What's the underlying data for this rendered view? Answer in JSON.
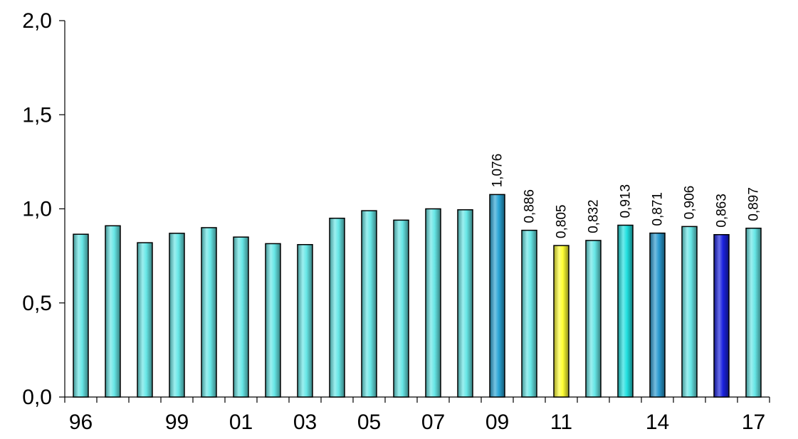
{
  "chart_data": {
    "type": "bar",
    "categories": [
      "96",
      "",
      "",
      "99",
      "",
      "01",
      "",
      "03",
      "",
      "05",
      "",
      "07",
      "",
      "09",
      "",
      "11",
      "",
      "",
      "14",
      "",
      "",
      "17"
    ],
    "values": [
      0.865,
      0.91,
      0.82,
      0.87,
      0.9,
      0.85,
      0.815,
      0.81,
      0.95,
      0.99,
      0.94,
      1.0,
      0.995,
      1.076,
      0.886,
      0.805,
      0.832,
      0.913,
      0.871,
      0.906,
      0.863,
      0.897
    ],
    "data_labels": [
      "",
      "",
      "",
      "",
      "",
      "",
      "",
      "",
      "",
      "",
      "",
      "",
      "",
      "1,076",
      "0,886",
      "0,805",
      "0,832",
      "0,913",
      "0,871",
      "0,906",
      "0,863",
      "0,897"
    ],
    "bar_colors": [
      "#66e6e6",
      "#66e6e6",
      "#66e6e6",
      "#66e6e6",
      "#66e6e6",
      "#66e6e6",
      "#66e6e6",
      "#66e6e6",
      "#66e6e6",
      "#66e6e6",
      "#66e6e6",
      "#66e6e6",
      "#66e6e6",
      "#2aa6d6",
      "#66e6e6",
      "#ffff33",
      "#66e6e6",
      "#22e0e0",
      "#2a9ad0",
      "#66e6e6",
      "#1a22e0",
      "#66e6e6"
    ],
    "ylim": [
      0,
      2.0
    ],
    "yticks": [
      0.0,
      0.5,
      1.0,
      1.5,
      2.0
    ],
    "ytick_labels": [
      "0,0",
      "0,5",
      "1,0",
      "1,5",
      "2,0"
    ],
    "title": "",
    "xlabel": "",
    "ylabel": "",
    "grid": false,
    "bar_outline_color": "#000000",
    "axis_color": "#000000"
  }
}
